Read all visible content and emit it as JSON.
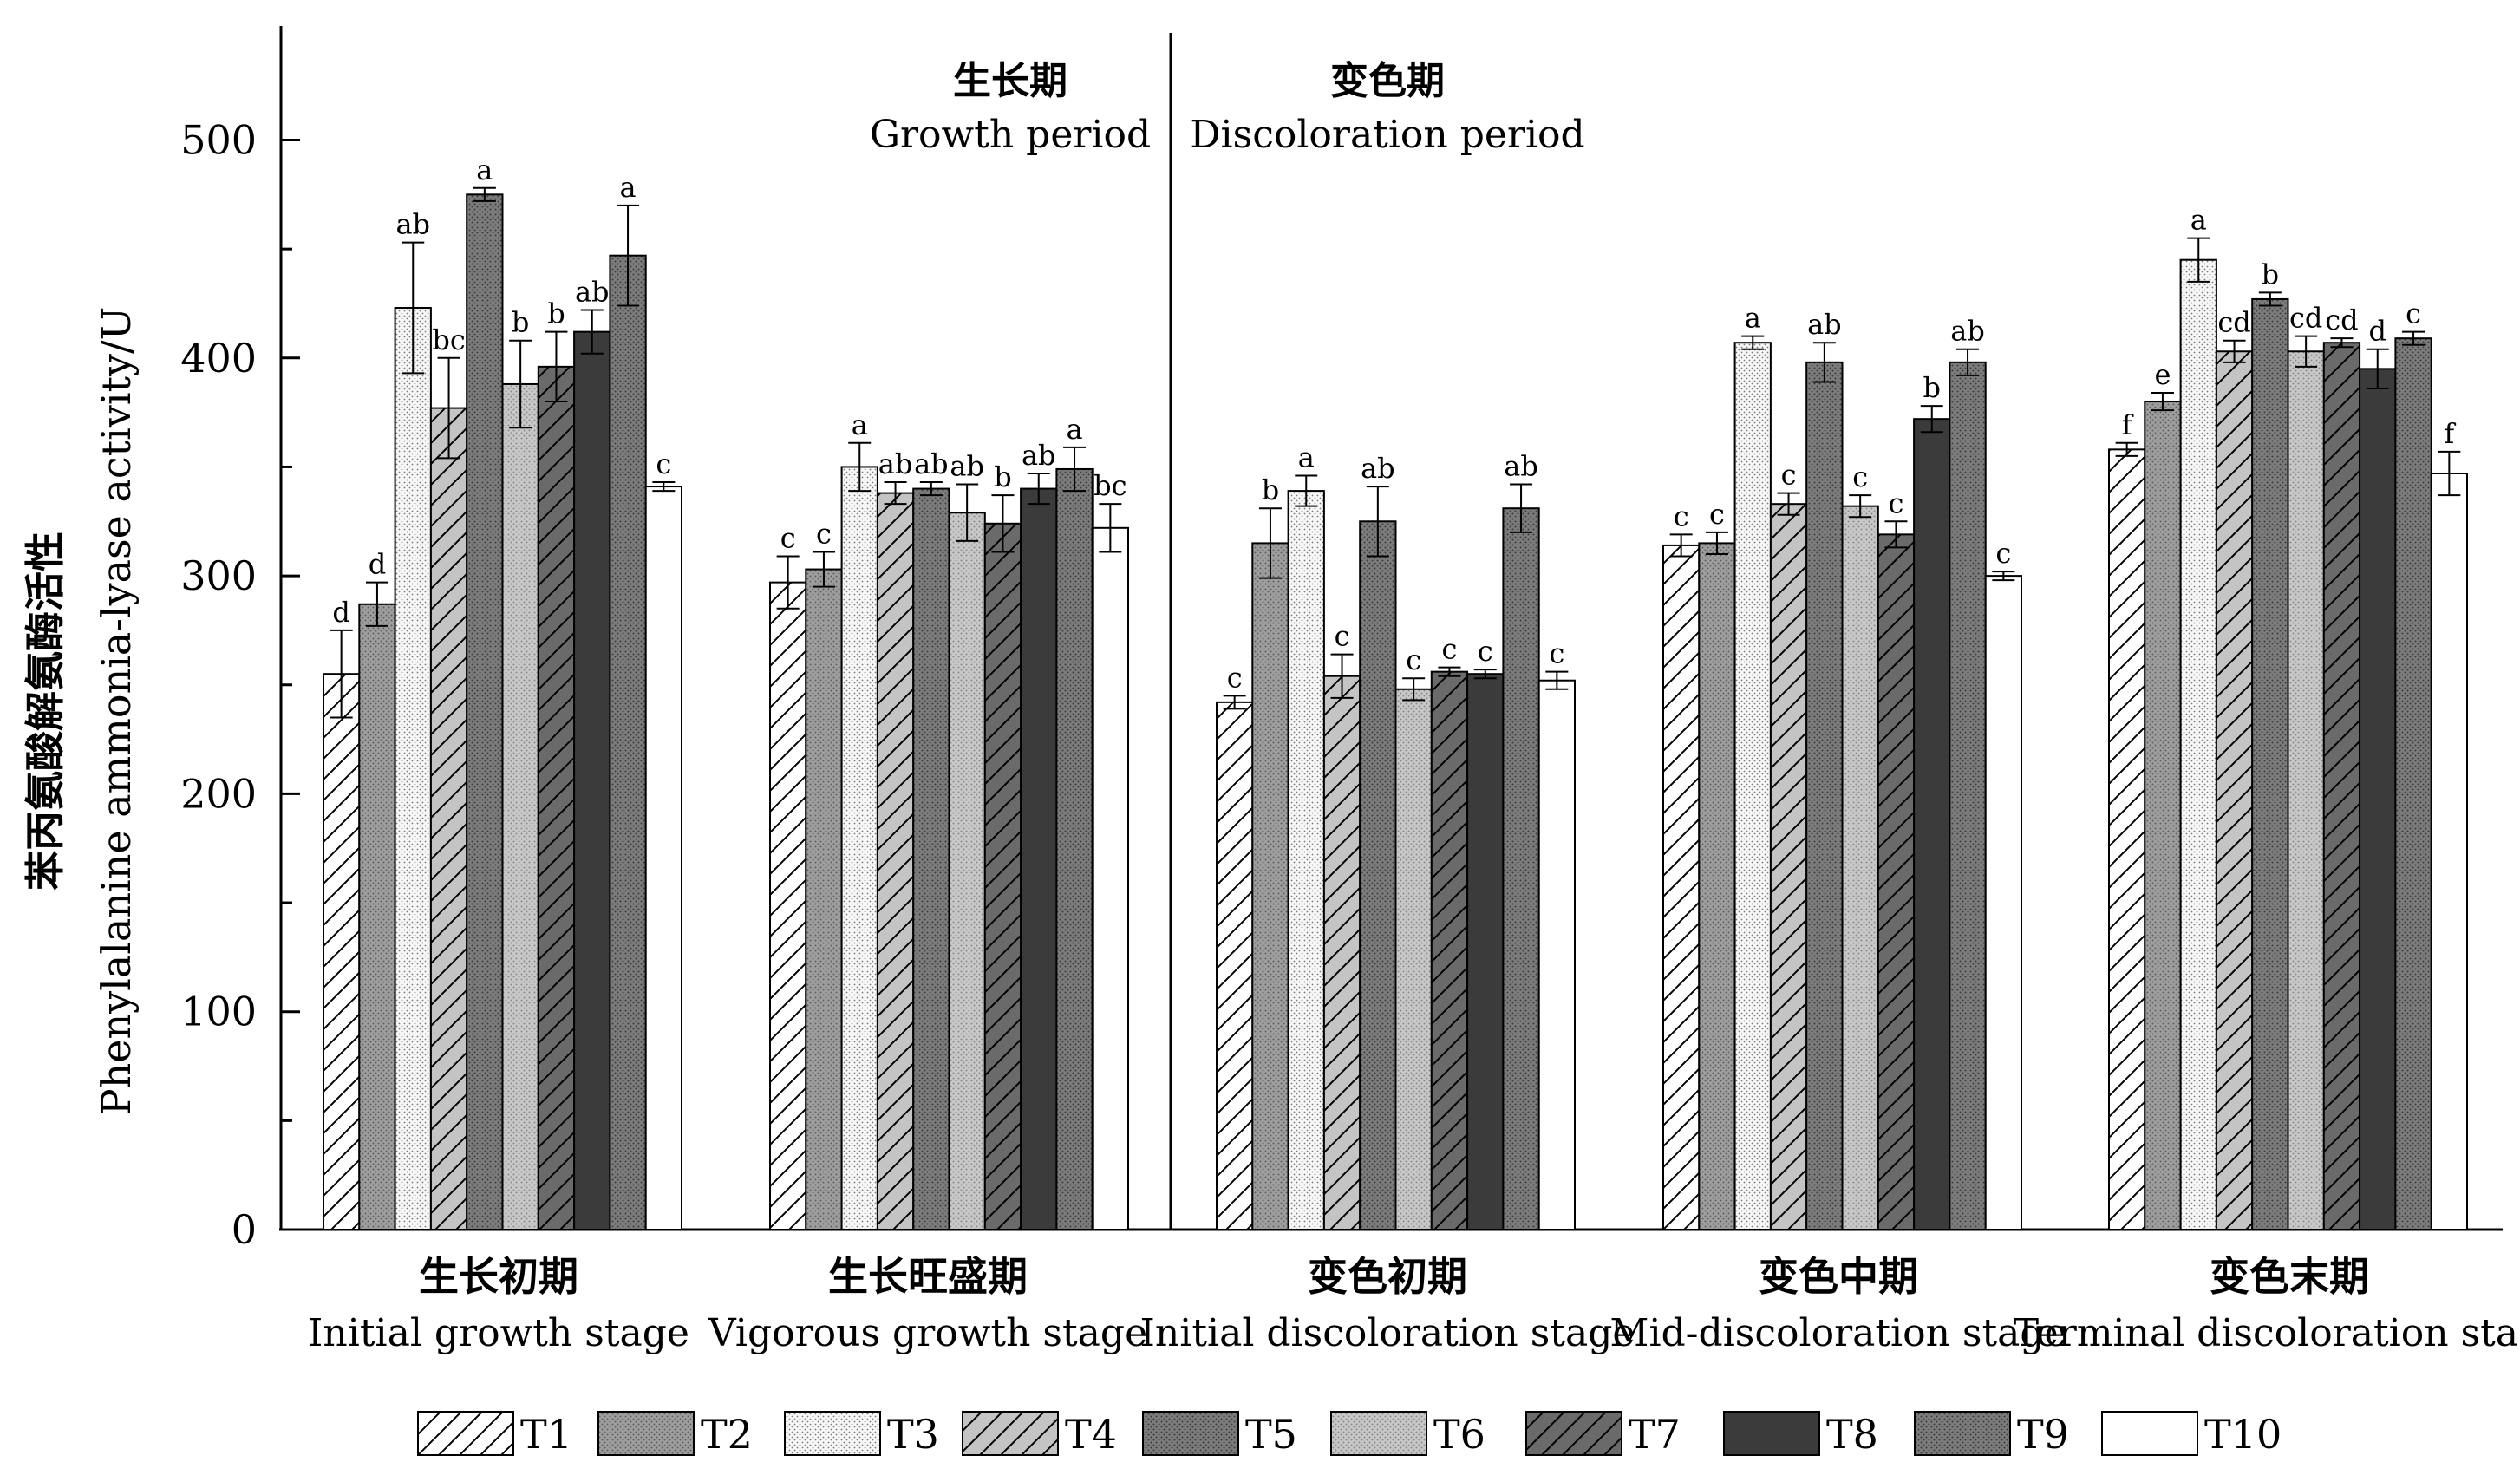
{
  "chart_data": {
    "type": "bar",
    "ylabel_cn": "苯丙氨酸解氨酶活性",
    "ylabel_en": "Phenylalanine ammonia-lyase activity/U",
    "ylim": [
      0,
      550
    ],
    "yticks": [
      0,
      100,
      200,
      300,
      400,
      500
    ],
    "period_labels": [
      {
        "cn": "生长期",
        "en": "Growth period"
      },
      {
        "cn": "变色期",
        "en": "Discoloration period"
      }
    ],
    "categories": [
      {
        "cn": "生长初期",
        "en": "Initial growth stage"
      },
      {
        "cn": "生长旺盛期",
        "en": "Vigorous growth stage"
      },
      {
        "cn": "变色初期",
        "en": "Initial discoloration stage"
      },
      {
        "cn": "变色中期",
        "en": "Mid-discoloration stage"
      },
      {
        "cn": "变色末期",
        "en": "Terminal discoloration stage"
      }
    ],
    "series": [
      {
        "name": "T1",
        "pattern": "hatch-white",
        "values": [
          255,
          297,
          242,
          314,
          358
        ],
        "errors": [
          20,
          12,
          3,
          5,
          3
        ],
        "letters": [
          "d",
          "c",
          "c",
          "c",
          "f"
        ]
      },
      {
        "name": "T2",
        "pattern": "dot-mid",
        "values": [
          287,
          303,
          315,
          315,
          380
        ],
        "errors": [
          10,
          8,
          16,
          5,
          4
        ],
        "letters": [
          "d",
          "c",
          "b",
          "c",
          "e"
        ]
      },
      {
        "name": "T3",
        "pattern": "dot-white",
        "values": [
          423,
          350,
          339,
          407,
          445
        ],
        "errors": [
          30,
          11,
          7,
          3,
          10
        ],
        "letters": [
          "ab",
          "a",
          "a",
          "a",
          "a"
        ]
      },
      {
        "name": "T4",
        "pattern": "hatch-light",
        "values": [
          377,
          338,
          254,
          333,
          403
        ],
        "errors": [
          23,
          5,
          10,
          5,
          5
        ],
        "letters": [
          "bc",
          "ab",
          "c",
          "c",
          "cd"
        ]
      },
      {
        "name": "T5",
        "pattern": "dot-dark",
        "values": [
          475,
          340,
          325,
          398,
          427
        ],
        "errors": [
          3,
          3,
          16,
          9,
          3
        ],
        "letters": [
          "a",
          "ab",
          "ab",
          "ab",
          "b"
        ]
      },
      {
        "name": "T6",
        "pattern": "dot-light",
        "values": [
          388,
          329,
          248,
          332,
          403
        ],
        "errors": [
          20,
          13,
          5,
          5,
          7
        ],
        "letters": [
          "b",
          "ab",
          "c",
          "c",
          "cd"
        ]
      },
      {
        "name": "T7",
        "pattern": "hatch-dark",
        "values": [
          396,
          324,
          256,
          319,
          407
        ],
        "errors": [
          16,
          13,
          2,
          6,
          2
        ],
        "letters": [
          "b",
          "b",
          "c",
          "c",
          "cd"
        ]
      },
      {
        "name": "T8",
        "pattern": "solid-dark",
        "values": [
          412,
          340,
          255,
          372,
          395
        ],
        "errors": [
          10,
          7,
          2,
          6,
          9
        ],
        "letters": [
          "ab",
          "ab",
          "c",
          "b",
          "d"
        ]
      },
      {
        "name": "T9",
        "pattern": "dot-dark",
        "values": [
          447,
          349,
          331,
          398,
          409
        ],
        "errors": [
          23,
          10,
          11,
          6,
          3
        ],
        "letters": [
          "a",
          "a",
          "ab",
          "ab",
          "c"
        ]
      },
      {
        "name": "T10",
        "pattern": "white",
        "values": [
          341,
          322,
          252,
          300,
          347
        ],
        "errors": [
          2,
          11,
          4,
          2,
          10
        ],
        "letters": [
          "c",
          "bc",
          "c",
          "c",
          "f"
        ]
      }
    ],
    "legend_position": "bottom",
    "grid": false
  }
}
